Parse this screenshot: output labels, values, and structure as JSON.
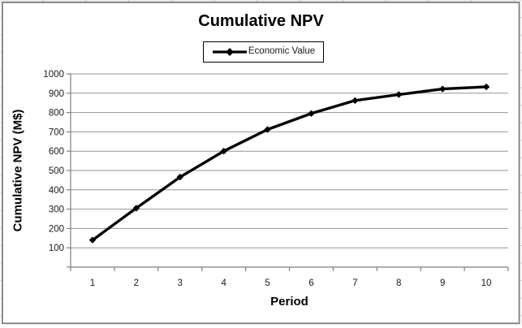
{
  "chart_data": {
    "type": "line",
    "title": "Cumulative NPV",
    "xlabel": "Period",
    "ylabel": "Cumulative NPV (M$)",
    "legend_position": "top-center",
    "grid": "horizontal",
    "categories": [
      "1",
      "2",
      "3",
      "4",
      "5",
      "6",
      "7",
      "8",
      "9",
      "10"
    ],
    "series": [
      {
        "name": "Economic Value",
        "values": [
          140,
          305,
          466,
          600,
          712,
          795,
          862,
          893,
          922,
          933
        ],
        "line_color": "#000000",
        "marker": "diamond"
      }
    ],
    "ylim": [
      0,
      1000
    ],
    "ytick_step": 100,
    "y_ticks": [
      100,
      200,
      300,
      400,
      500,
      600,
      700,
      800,
      900,
      1000
    ]
  },
  "styles": {
    "background": "#FFFFFF",
    "chart_border_color": "#7F7F7F",
    "grid_color": "#969696",
    "axis_color": "#808080",
    "tick_text_color": "#1a1a1a",
    "worksheet_line_color": "#D6D6D6",
    "worksheet_stub_color": "#C2C2C2"
  }
}
